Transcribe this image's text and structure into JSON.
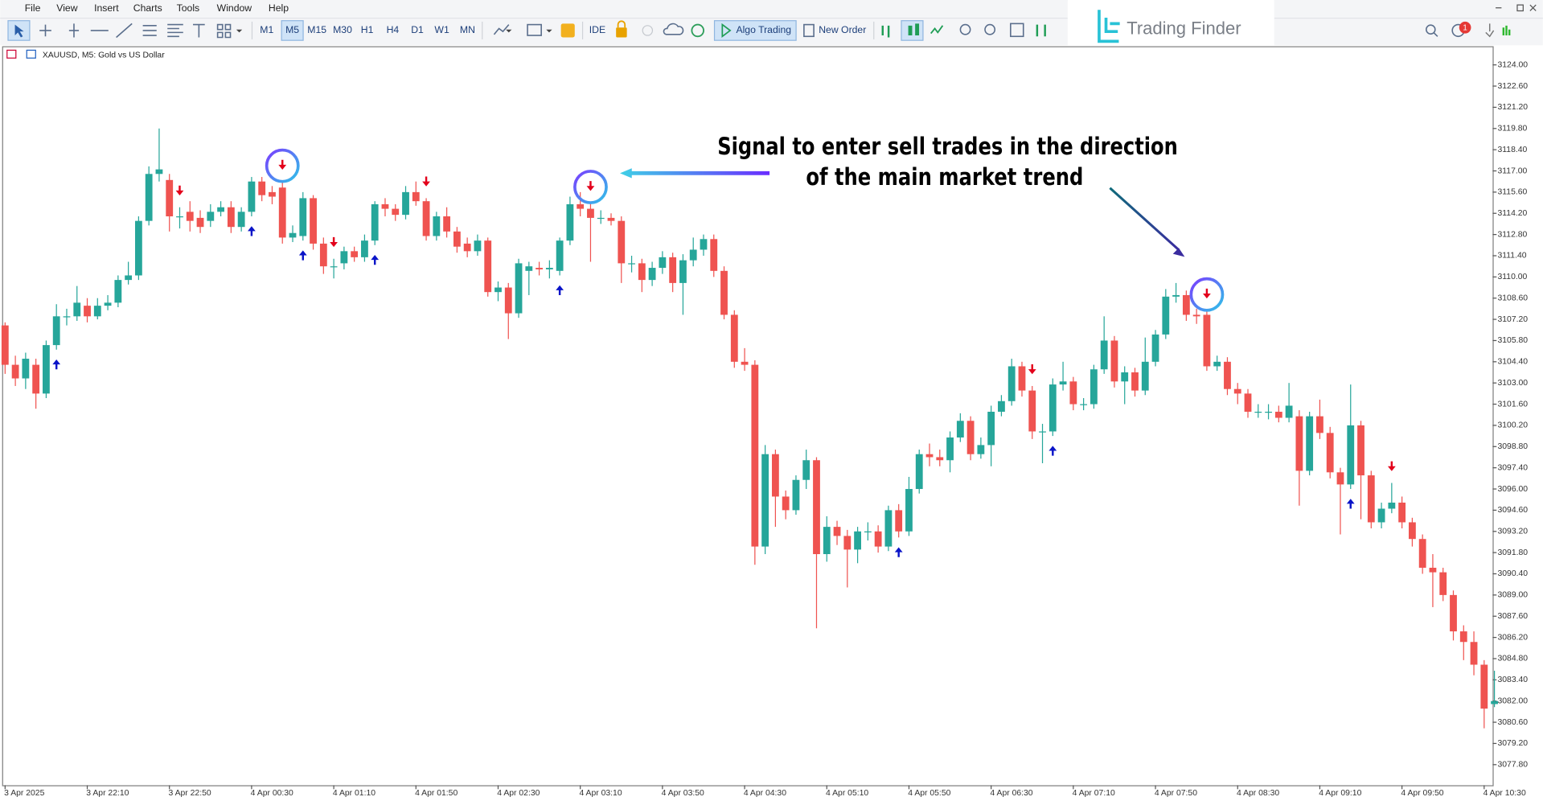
{
  "menu": [
    "File",
    "View",
    "Insert",
    "Charts",
    "Tools",
    "Window",
    "Help"
  ],
  "toolbar": {
    "timeframes": [
      "M1",
      "M5",
      "M15",
      "M30",
      "H1",
      "H4",
      "D1",
      "W1",
      "MN"
    ],
    "ide": "IDE",
    "algo_trading": "Algo Trading",
    "new_order": "New Order",
    "logo": "Trading Finder",
    "notification_count": 1
  },
  "chart_data": {
    "type": "candlestick",
    "title": "XAUUSD, M5:  Gold vs US Dollar",
    "annotation": [
      "Signal to enter sell trades in the direction",
      "of the main market trend"
    ],
    "up_color": "#26a69a",
    "down_color": "#ef5350",
    "sell_color": "#e3001b",
    "buy_color": "#0a14c8",
    "grid": false,
    "ylim": [
      3076.44,
      3125.23
    ],
    "yticks": [
      {
        "value": 3124,
        "label": "3124.00"
      },
      {
        "value": 3122.6,
        "label": "3122.60"
      },
      {
        "value": 3121.2,
        "label": "3121.20"
      },
      {
        "value": 3119.8,
        "label": "3119.80"
      },
      {
        "value": 3118.4,
        "label": "3118.40"
      },
      {
        "value": 3117,
        "label": "3117.00"
      },
      {
        "value": 3115.6,
        "label": "3115.60"
      },
      {
        "value": 3114.2,
        "label": "3114.20"
      },
      {
        "value": 3112.8,
        "label": "3112.80"
      },
      {
        "value": 3111.4,
        "label": "3111.40"
      },
      {
        "value": 3110,
        "label": "3110.00"
      },
      {
        "value": 3108.6,
        "label": "3108.60"
      },
      {
        "value": 3107.2,
        "label": "3107.20"
      },
      {
        "value": 3105.8,
        "label": "3105.80"
      },
      {
        "value": 3104.4,
        "label": "3104.40"
      },
      {
        "value": 3103,
        "label": "3103.00"
      },
      {
        "value": 3101.6,
        "label": "3101.60"
      },
      {
        "value": 3100.2,
        "label": "3100.20"
      },
      {
        "value": 3098.8,
        "label": "3098.80"
      },
      {
        "value": 3097.4,
        "label": "3097.40"
      },
      {
        "value": 3096,
        "label": "3096.00"
      },
      {
        "value": 3094.6,
        "label": "3094.60"
      },
      {
        "value": 3093.2,
        "label": "3093.20"
      },
      {
        "value": 3091.8,
        "label": "3091.80"
      },
      {
        "value": 3090.4,
        "label": "3090.40"
      },
      {
        "value": 3089,
        "label": "3089.00"
      },
      {
        "value": 3087.6,
        "label": "3087.60"
      },
      {
        "value": 3086.2,
        "label": "3086.20"
      },
      {
        "value": 3084.8,
        "label": "3084.80"
      },
      {
        "value": 3083.4,
        "label": "3083.40"
      },
      {
        "value": 3082,
        "label": "3082.00"
      },
      {
        "value": 3080.6,
        "label": "3080.60"
      },
      {
        "value": 3079.2,
        "label": "3079.20"
      },
      {
        "value": 3077.8,
        "label": "3077.80"
      }
    ],
    "categories": [
      "3 Apr 2025",
      null,
      null,
      null,
      null,
      null,
      null,
      null,
      "3 Apr 22:10",
      null,
      null,
      null,
      null,
      null,
      null,
      null,
      "3 Apr 22:50",
      null,
      null,
      null,
      null,
      null,
      null,
      null,
      "4 Apr 00:30",
      null,
      null,
      null,
      null,
      null,
      null,
      null,
      "4 Apr 01:10",
      null,
      null,
      null,
      null,
      null,
      null,
      null,
      "4 Apr 01:50",
      null,
      null,
      null,
      null,
      null,
      null,
      null,
      "4 Apr 02:30",
      null,
      null,
      null,
      null,
      null,
      null,
      null,
      "4 Apr 03:10",
      null,
      null,
      null,
      null,
      null,
      null,
      null,
      "4 Apr 03:50",
      null,
      null,
      null,
      null,
      null,
      null,
      null,
      "4 Apr 04:30",
      null,
      null,
      null,
      null,
      null,
      null,
      null,
      "4 Apr 05:10",
      null,
      null,
      null,
      null,
      null,
      null,
      null,
      "4 Apr 05:50",
      null,
      null,
      null,
      null,
      null,
      null,
      null,
      "4 Apr 06:30",
      null,
      null,
      null,
      null,
      null,
      null,
      null,
      "4 Apr 07:10",
      null,
      null,
      null,
      null,
      null,
      null,
      null,
      "4 Apr 07:50",
      null,
      null,
      null,
      null,
      null,
      null,
      null,
      "4 Apr 08:30",
      null,
      null,
      null,
      null,
      null,
      null,
      null,
      "4 Apr 09:10",
      null,
      null,
      null,
      null,
      null,
      null,
      null,
      "4 Apr 09:50",
      null,
      null,
      null,
      null,
      null,
      null,
      null,
      "4 Apr 10:30",
      null
    ],
    "open": [
      3106.8,
      3104.2,
      3103.3,
      3104.2,
      3102.3,
      3105.5,
      3107.4,
      3107.4,
      3108.1,
      3107.4,
      3108.1,
      3108.3,
      3109.8,
      3110.1,
      3113.7,
      3116.8,
      3116.4,
      3114.0,
      3114.3,
      3113.9,
      3113.7,
      3114.3,
      3114.6,
      3113.3,
      3114.3,
      3116.3,
      3115.6,
      3115.9,
      3112.6,
      3112.7,
      3115.2,
      3112.2,
      3110.7,
      3110.9,
      3111.7,
      3111.3,
      3112.4,
      3114.8,
      3114.5,
      3114.1,
      3115.6,
      3115.0,
      3112.7,
      3114.0,
      3113.0,
      3112.2,
      3111.7,
      3112.4,
      3109.0,
      3109.3,
      3107.6,
      3110.4,
      3110.6,
      3110.5,
      3110.4,
      3112.4,
      3114.8,
      3114.5,
      3113.9,
      3113.9,
      3113.7,
      3110.9,
      3110.9,
      3109.8,
      3110.6,
      3111.3,
      3109.6,
      3111.1,
      3111.8,
      3112.5,
      3110.4,
      3107.5,
      3104.4,
      3104.2,
      3092.2,
      3098.3,
      3095.5,
      3094.6,
      3096.6,
      3097.9,
      3091.7,
      3093.5,
      3092.9,
      3092.0,
      3093.2,
      3093.2,
      3092.2,
      3094.6,
      3093.2,
      3096.0,
      3098.3,
      3098.1,
      3097.9,
      3099.4,
      3100.5,
      3098.3,
      3098.9,
      3101.1,
      3101.8,
      3104.1,
      3102.5,
      3099.8,
      3099.8,
      3102.9,
      3103.1,
      3101.6,
      3101.6,
      3103.9,
      3105.8,
      3103.1,
      3103.7,
      3102.5,
      3104.4,
      3106.2,
      3108.7,
      3108.8,
      3107.5,
      3107.5,
      3104.1,
      3104.4,
      3102.6,
      3102.3,
      3101.1,
      3101.1,
      3101.1,
      3100.7,
      3100.8,
      3097.2,
      3100.8,
      3099.7,
      3097.1,
      3096.3,
      3100.2,
      3096.9,
      3093.8,
      3094.7,
      3095.1,
      3093.8,
      3092.7,
      3090.8,
      3090.5,
      3089.0,
      3086.6,
      3085.9,
      3084.4,
      3081.8
    ],
    "high": [
      3107.0,
      3104.8,
      3105.0,
      3104.6,
      3105.8,
      3108.2,
      3107.9,
      3109.4,
      3108.6,
      3108.6,
      3108.8,
      3110.1,
      3111.0,
      3114.0,
      3117.3,
      3119.8,
      3116.8,
      3114.6,
      3115.0,
      3114.4,
      3114.8,
      3115.0,
      3115.0,
      3114.6,
      3116.6,
      3116.6,
      3116.0,
      3116.3,
      3113.4,
      3115.6,
      3115.4,
      3112.6,
      3111.2,
      3112.0,
      3112.0,
      3112.8,
      3115.0,
      3115.2,
      3114.8,
      3116.0,
      3116.3,
      3115.2,
      3114.3,
      3114.6,
      3113.3,
      3112.6,
      3112.8,
      3112.6,
      3109.7,
      3109.6,
      3111.2,
      3111.0,
      3111.0,
      3111.1,
      3112.6,
      3115.3,
      3115.6,
      3114.9,
      3114.4,
      3114.2,
      3114.0,
      3111.4,
      3111.2,
      3111.0,
      3111.7,
      3111.6,
      3111.5,
      3112.6,
      3112.8,
      3112.8,
      3110.7,
      3107.8,
      3105.3,
      3104.5,
      3098.9,
      3098.6,
      3095.9,
      3096.9,
      3098.6,
      3098.1,
      3094.2,
      3093.9,
      3093.3,
      3093.5,
      3093.8,
      3093.6,
      3094.9,
      3095.0,
      3096.8,
      3098.6,
      3099.0,
      3098.6,
      3099.8,
      3101.0,
      3100.8,
      3099.4,
      3101.5,
      3102.2,
      3104.6,
      3104.4,
      3102.8,
      3100.3,
      3103.3,
      3104.4,
      3103.4,
      3102.0,
      3104.2,
      3107.4,
      3106.1,
      3104.1,
      3104.0,
      3106.0,
      3106.5,
      3109.2,
      3109.6,
      3109.1,
      3107.9,
      3107.8,
      3104.8,
      3104.7,
      3103.0,
      3102.6,
      3101.6,
      3101.6,
      3101.5,
      3103.0,
      3101.2,
      3101.1,
      3101.9,
      3100.1,
      3097.4,
      3102.9,
      3100.5,
      3097.2,
      3095.1,
      3096.4,
      3095.5,
      3094.1,
      3093.0,
      3091.7,
      3090.8,
      3089.3,
      3087.0,
      3086.6,
      3084.7,
      3084.0
    ],
    "low": [
      3103.6,
      3102.8,
      3102.6,
      3101.3,
      3102.0,
      3105.2,
      3106.8,
      3107.1,
      3107.0,
      3107.2,
      3107.8,
      3108.0,
      3109.5,
      3109.8,
      3113.4,
      3116.3,
      3113.0,
      3113.2,
      3113.0,
      3112.9,
      3113.3,
      3114.0,
      3112.9,
      3113.0,
      3114.0,
      3115.0,
      3114.8,
      3112.2,
      3112.3,
      3112.4,
      3111.8,
      3110.2,
      3109.9,
      3110.5,
      3111.0,
      3111.0,
      3112.1,
      3114.0,
      3113.7,
      3113.8,
      3114.7,
      3112.4,
      3112.4,
      3112.6,
      3111.6,
      3111.3,
      3111.4,
      3108.7,
      3108.4,
      3105.9,
      3107.3,
      3108.8,
      3110.1,
      3109.9,
      3110.1,
      3112.1,
      3114.0,
      3111.0,
      3113.5,
      3113.4,
      3109.6,
      3110.3,
      3109.0,
      3109.4,
      3110.2,
      3109.0,
      3107.5,
      3110.7,
      3111.4,
      3110.0,
      3107.2,
      3104.0,
      3103.8,
      3091.0,
      3091.7,
      3093.5,
      3094.0,
      3094.3,
      3096.0,
      3086.8,
      3091.2,
      3092.3,
      3089.5,
      3091.1,
      3092.6,
      3091.8,
      3091.9,
      3092.8,
      3092.9,
      3095.7,
      3097.5,
      3097.5,
      3097.1,
      3099.1,
      3097.9,
      3098.0,
      3097.5,
      3100.8,
      3101.5,
      3102.1,
      3099.3,
      3097.7,
      3099.5,
      3102.5,
      3101.2,
      3101.2,
      3101.3,
      3103.6,
      3102.7,
      3101.6,
      3102.1,
      3102.2,
      3104.1,
      3105.9,
      3108.3,
      3107.1,
      3106.9,
      3103.8,
      3103.8,
      3102.2,
      3101.6,
      3100.7,
      3100.7,
      3100.6,
      3100.4,
      3100.4,
      3094.9,
      3096.9,
      3099.3,
      3096.7,
      3093.0,
      3096.0,
      3094.0,
      3093.4,
      3093.4,
      3094.4,
      3093.4,
      3092.2,
      3090.4,
      3088.2,
      3088.6,
      3086.0,
      3084.7,
      3083.7,
      3080.2,
      3081.6
    ],
    "close": [
      3104.2,
      3103.3,
      3104.6,
      3102.3,
      3105.5,
      3107.4,
      3107.4,
      3108.3,
      3107.4,
      3108.1,
      3108.3,
      3109.8,
      3110.1,
      3113.7,
      3116.8,
      3117.1,
      3114.0,
      3114.0,
      3113.7,
      3113.3,
      3114.3,
      3114.6,
      3113.3,
      3114.3,
      3116.3,
      3115.4,
      3115.3,
      3112.6,
      3112.9,
      3115.2,
      3112.2,
      3110.7,
      3110.7,
      3111.7,
      3111.3,
      3112.4,
      3114.8,
      3114.5,
      3114.1,
      3115.6,
      3115.0,
      3112.7,
      3114.0,
      3113.0,
      3112.0,
      3111.7,
      3112.4,
      3109.0,
      3109.3,
      3107.6,
      3110.9,
      3110.7,
      3110.5,
      3110.6,
      3112.4,
      3114.8,
      3114.5,
      3113.9,
      3113.9,
      3113.7,
      3110.9,
      3110.9,
      3109.8,
      3110.6,
      3111.3,
      3109.6,
      3111.1,
      3111.8,
      3112.5,
      3110.4,
      3107.5,
      3104.4,
      3104.2,
      3092.2,
      3098.3,
      3095.5,
      3094.6,
      3096.6,
      3097.9,
      3091.7,
      3093.5,
      3092.9,
      3092.0,
      3093.2,
      3093.2,
      3092.2,
      3094.6,
      3093.2,
      3096.0,
      3098.3,
      3098.1,
      3097.9,
      3099.4,
      3100.5,
      3098.3,
      3098.9,
      3101.1,
      3101.8,
      3104.1,
      3102.5,
      3099.8,
      3099.8,
      3102.9,
      3103.1,
      3101.6,
      3101.6,
      3103.9,
      3105.8,
      3103.1,
      3103.7,
      3102.5,
      3104.4,
      3106.2,
      3108.7,
      3108.8,
      3107.5,
      3107.4,
      3104.1,
      3104.4,
      3102.6,
      3102.3,
      3101.1,
      3101.1,
      3101.1,
      3100.7,
      3101.5,
      3097.2,
      3100.8,
      3099.7,
      3097.1,
      3096.3,
      3100.2,
      3096.9,
      3093.8,
      3094.7,
      3095.1,
      3093.8,
      3092.7,
      3090.8,
      3090.5,
      3089.0,
      3086.6,
      3085.9,
      3084.4,
      3081.5,
      3082.0
    ],
    "sell_signals": [
      17,
      27,
      32,
      41,
      57,
      100,
      117,
      135
    ],
    "buy_signals": [
      5,
      24,
      29,
      36,
      54,
      87,
      102,
      131
    ],
    "highlighted_signals": [
      27,
      57,
      117
    ]
  }
}
